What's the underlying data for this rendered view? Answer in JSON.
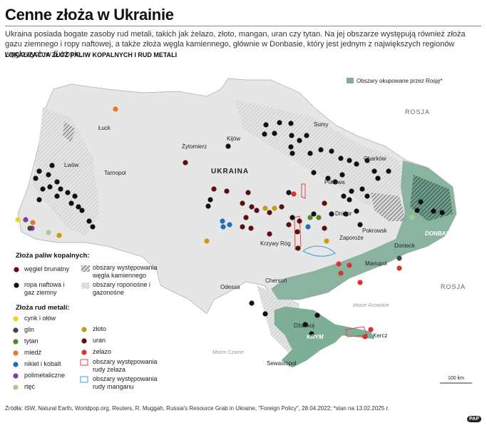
{
  "header": {
    "title": "Cenne złoża w Ukrainie",
    "intro": "Ukraina posiada bogate zasoby rud metali, takich jak żelazo, złoto, mangan, uran czy tytan. Na jej obszarze występują również złoża gazu ziemnego i ropy naftowej, a także złoża węgla kamiennego, głównie w Donbasie, który jest jednym z największych regionów węglowych w Europie.",
    "subtitle": "LOKALIZACJA ZŁÓŻ PALIW KOPALNYCH I RUD METALI"
  },
  "map": {
    "occupied": "Obszary okupowane przez Rosję*",
    "labels": [
      "Łuck",
      "Lwów",
      "Tarnopol",
      "Żytomierz",
      "Kijów",
      "Sumy",
      "Charków",
      "Połtawa",
      "Dniepr",
      "Zaporoże",
      "Pokrowsk",
      "Donieck",
      "Mariupol",
      "Krzywy Róg",
      "Chersoń",
      "Odessa",
      "Dżankoj",
      "Kercz",
      "Sewastopol",
      "UKRAINA",
      "ROSJA",
      "ROSJA",
      "DONBAS",
      "KRYM",
      "Morze Czarne",
      "Morze Azowskie"
    ],
    "scale": "100 km"
  },
  "legend": {
    "fuels_title": "Złoża paliw kopalnych:",
    "fuels": [
      "węgiel brunatny",
      "ropa naftowa i gaz ziemny",
      "obszary występowania węgla kamiennego",
      "obszary roponośne i gazonośne"
    ],
    "metals_title": "Złoża rud metali:",
    "metals": [
      "cynk i ołów",
      "glin",
      "tytan",
      "miedź",
      "nikiel i kobalt",
      "polimetaliczne",
      "rtęć",
      "złoto",
      "uran",
      "żelazo",
      "obszary występowania rudy żelaza",
      "obszary występowania rudy manganu"
    ]
  },
  "footer": {
    "source": "Źródła: ISW, Natural Earth, Worldpop.org, Reuters, R. Muggah, Russia's Resource Grab in Ukraine, \"Foreign Policy\", 28.04.2022; *stan na 13.02.2025 r.",
    "logo": "PAP"
  }
}
